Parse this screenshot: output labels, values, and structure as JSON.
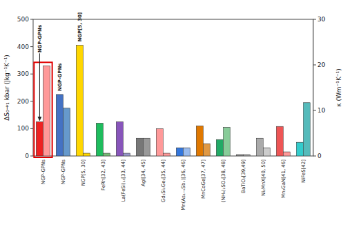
{
  "chart_data": {
    "type": "bar",
    "categories": [
      "NGP-GPNs",
      "NGP-GPNs",
      "NGP[5, 30]",
      "FeRh[32, 43]",
      "La(FeSi)₁₃[33, 44]",
      "AgI[34, 45]",
      "Gd₅Si₂Ge₂[35, 44]",
      "Mn(As₁₋ₓSbₓ)[36, 46]",
      "MnCoGe[37, 47]",
      "(NH₄)₂SO₄[38, 48]",
      "BaTiO₃[39,49]",
      "Ni₂MnX[40, 50]",
      "Mn₃GaN[41, 46]",
      "NiFeS[42]"
    ],
    "series": [
      {
        "values": [
          125,
          225,
          405,
          120,
          125,
          65,
          100,
          30,
          110,
          60,
          5,
          65,
          108,
          50
        ],
        "colors": [
          "#EE2222",
          "#4472C4",
          "#FFD700",
          "#1EBD5E",
          "#8855BB",
          "#777777",
          "#FF9999",
          "#3377DD",
          "#E07800",
          "#22AA66",
          "#888888",
          "#AAAAAA",
          "#EE5555",
          "#33CCCC"
        ]
      },
      {
        "values": [
          19.8,
          10.5,
          0.6,
          0.6,
          0.6,
          3.9,
          0.6,
          1.8,
          2.7,
          6.3,
          0.3,
          1.8,
          0.9,
          11.7
        ],
        "colors": [
          "#FF9999",
          "#6699CC",
          "#FFD700",
          "#77BB77",
          "#9999CC",
          "#999999",
          "#FF9999",
          "#99BBEE",
          "#E09944",
          "#88CC99",
          "#AAAAAA",
          "#CCCCCC",
          "#FF9999",
          "#55BBBB"
        ],
        "axis": "y2"
      }
    ],
    "y_label": "ΔS₀→₁ kbar (Jkg⁻¹K⁻¹)",
    "y2_label": "κ (Wm⁻¹K⁻¹)",
    "ylim": [
      0,
      500
    ],
    "yticks": [
      0,
      100,
      200,
      300,
      400,
      500
    ],
    "y2lim": [
      0,
      30
    ],
    "y2ticks": [
      0,
      10,
      20,
      30
    ],
    "annotations": [
      "NGP-GPNs",
      "NGP-GPNs",
      "NGP[5, 30]"
    ],
    "grid": false
  }
}
